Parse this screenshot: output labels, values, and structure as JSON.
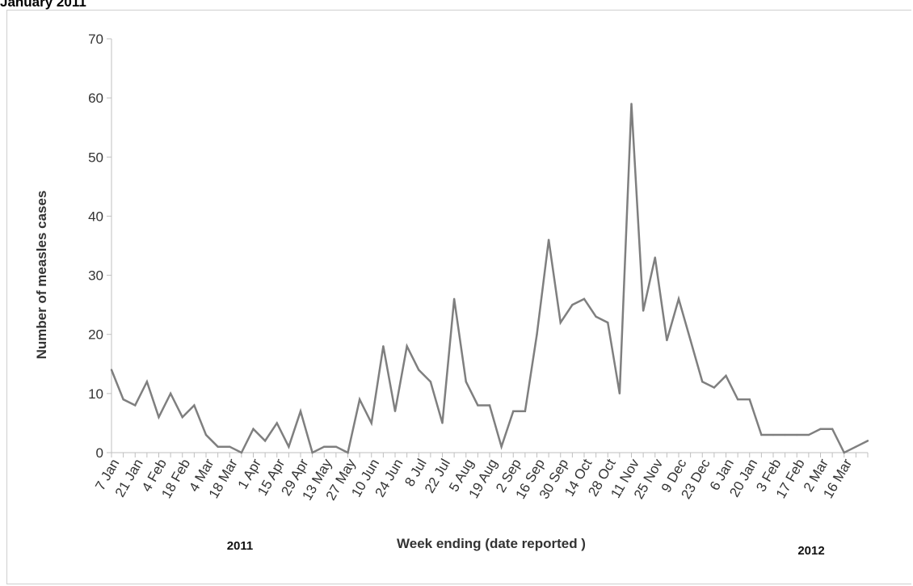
{
  "page_title_fragment": "January 2011",
  "chart_data": {
    "type": "line",
    "title": "",
    "xlabel": "Week ending (date reported )",
    "ylabel": "Number of measles cases",
    "ylim": [
      0,
      70
    ],
    "yticks": [
      0,
      10,
      20,
      30,
      40,
      50,
      60,
      70
    ],
    "year_labels": [
      "2011",
      "2012"
    ],
    "line_color": "#7f7f7f",
    "tick_labels": [
      "7 Jan",
      "21 Jan",
      "4 Feb",
      "18 Feb",
      "4 Mar",
      "18 Mar",
      "1 Apr",
      "15 Apr",
      "29 Apr",
      "13 May",
      "27 May",
      "10 Jun",
      "24 Jun",
      "8 Jul",
      "22 Jul",
      "5 Aug",
      "19 Aug",
      "2 Sep",
      "16 Sep",
      "30 Sep",
      "14 Oct",
      "28 Oct",
      "11 Nov",
      "25 Nov",
      "9 Dec",
      "23 Dec",
      "6 Jan",
      "20 Jan",
      "3 Feb",
      "17 Feb",
      "2 Mar",
      "16 Mar"
    ],
    "values": [
      14,
      9,
      8,
      12,
      6,
      10,
      6,
      8,
      3,
      1,
      1,
      0,
      4,
      2,
      5,
      1,
      7,
      0,
      1,
      1,
      0,
      9,
      5,
      18,
      7,
      18,
      14,
      12,
      5,
      26,
      12,
      8,
      8,
      1,
      7,
      7,
      20,
      36,
      22,
      25,
      26,
      23,
      22,
      10,
      59,
      24,
      33,
      19,
      26,
      19,
      12,
      11,
      13,
      9,
      9,
      3,
      3,
      3,
      3,
      3,
      4,
      4,
      0,
      1,
      2
    ]
  }
}
